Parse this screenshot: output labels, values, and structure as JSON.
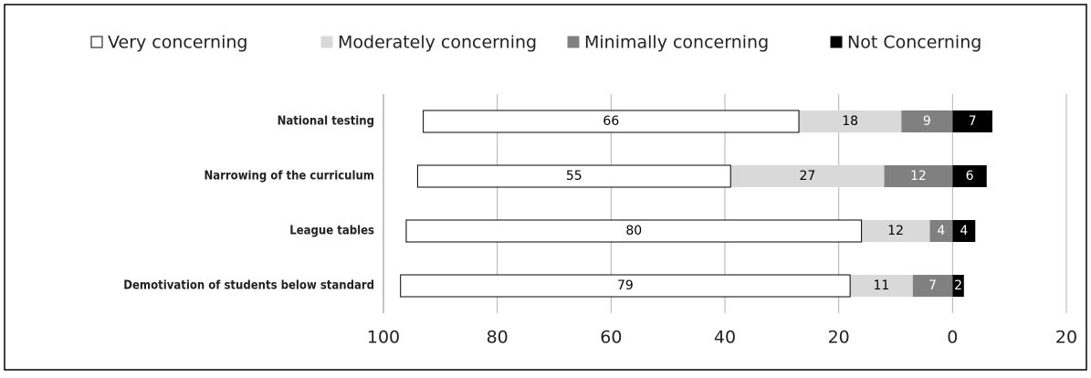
{
  "chart_data": {
    "type": "diverging-bar",
    "categories": [
      "National testing",
      "Narrowing of the curriculum",
      "League tables",
      "Demotivation of students below standard"
    ],
    "series": [
      {
        "name": "Very concerning",
        "color": "#ffffff",
        "values": [
          66,
          55,
          80,
          79
        ]
      },
      {
        "name": "Moderately concerning",
        "color": "#d9d9d9",
        "values": [
          18,
          27,
          12,
          11
        ]
      },
      {
        "name": "Minimally concerning",
        "color": "#808080",
        "values": [
          9,
          12,
          4,
          7
        ]
      },
      {
        "name": "Not Concerning",
        "color": "#000000",
        "values": [
          7,
          6,
          4,
          2
        ]
      }
    ],
    "xlim": [
      100,
      -20
    ],
    "xticks": [
      100,
      80,
      60,
      40,
      20,
      0,
      {
        "value": -20,
        "label": "20"
      }
    ],
    "grid": true,
    "legend": "top"
  }
}
